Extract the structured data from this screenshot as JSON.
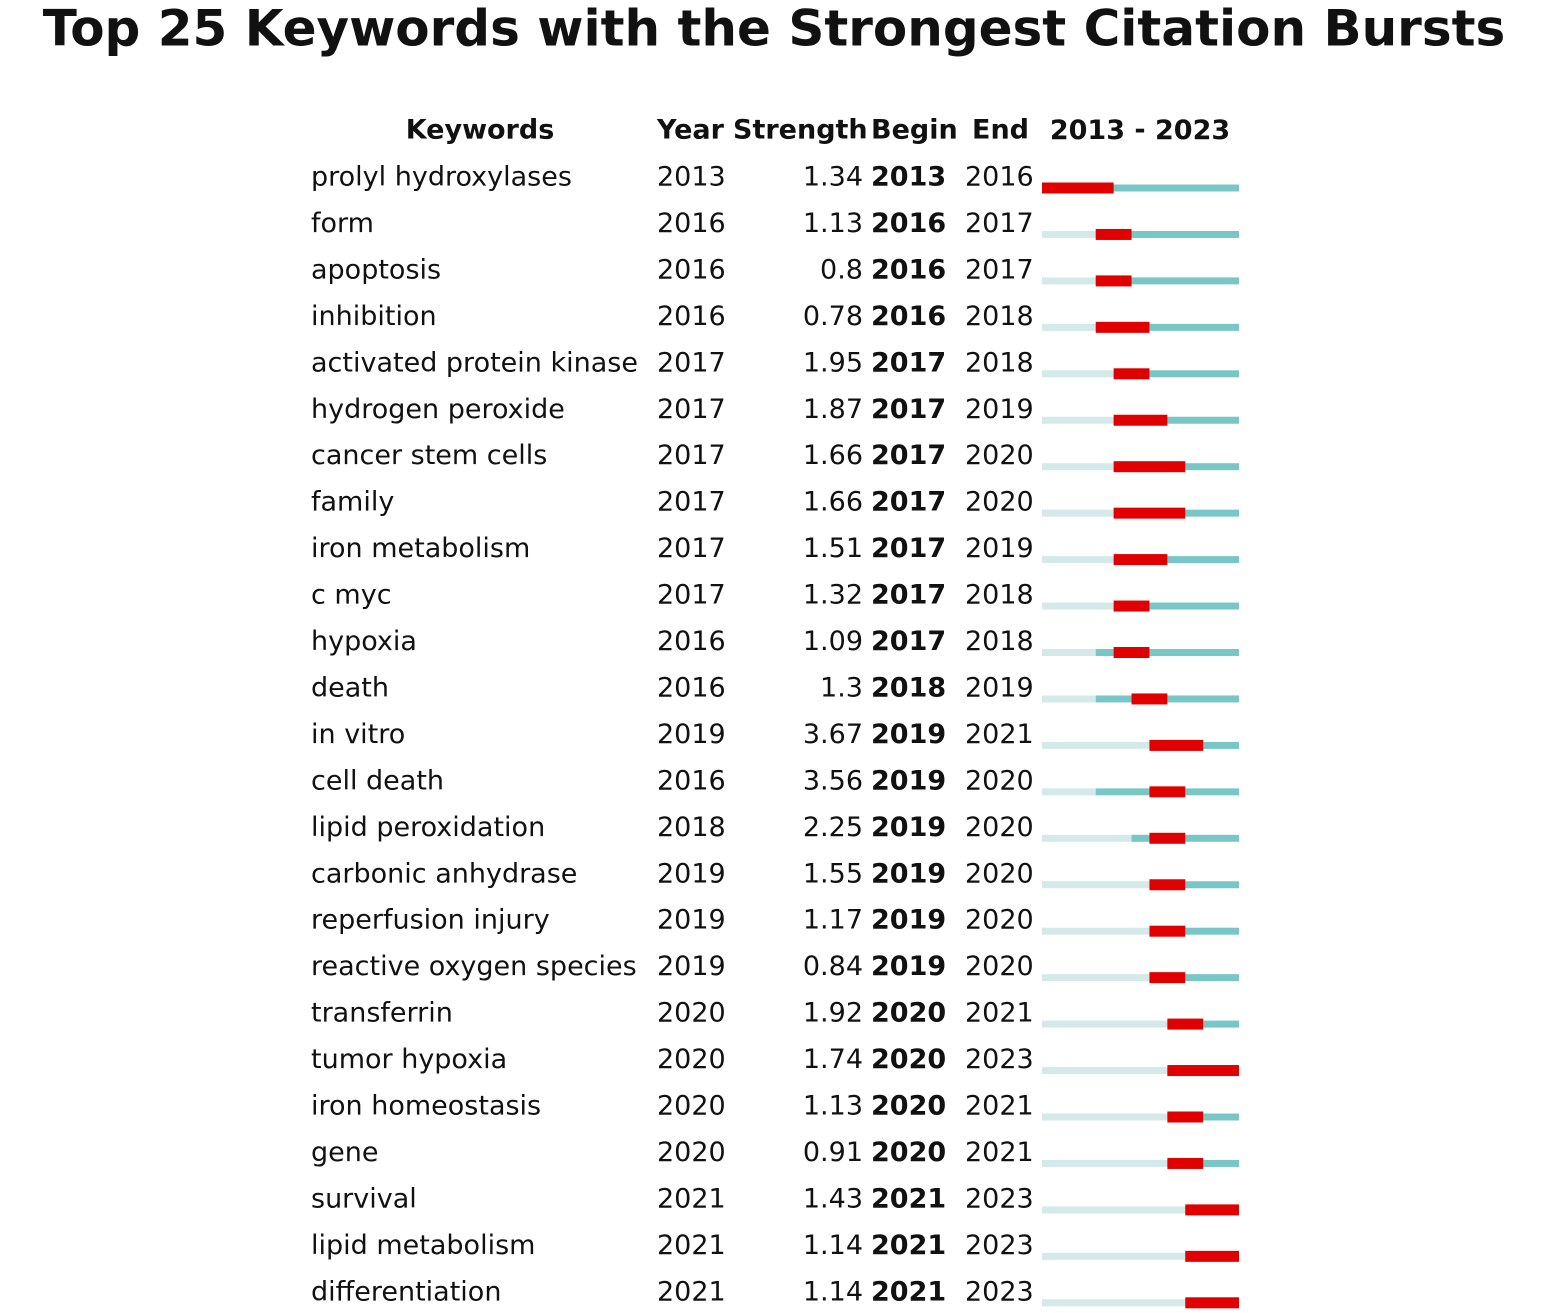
{
  "title": "Top 25 Keywords with the Strongest Citation Bursts",
  "columns": {
    "keyword": "Keywords",
    "year": "Year",
    "strength": "Strength",
    "begin": "Begin",
    "end": "End"
  },
  "timeline": {
    "start": 2013,
    "end": 2023
  },
  "rows": [
    {
      "keyword": "prolyl hydroxylases",
      "year": 2013,
      "strength": 1.34,
      "begin": 2013,
      "end": 2016
    },
    {
      "keyword": "form",
      "year": 2016,
      "strength": 1.13,
      "begin": 2016,
      "end": 2017
    },
    {
      "keyword": "apoptosis",
      "year": 2016,
      "strength": 0.8,
      "begin": 2016,
      "end": 2017
    },
    {
      "keyword": "inhibition",
      "year": 2016,
      "strength": 0.78,
      "begin": 2016,
      "end": 2018
    },
    {
      "keyword": "activated protein kinase",
      "year": 2017,
      "strength": 1.95,
      "begin": 2017,
      "end": 2018
    },
    {
      "keyword": "hydrogen peroxide",
      "year": 2017,
      "strength": 1.87,
      "begin": 2017,
      "end": 2019
    },
    {
      "keyword": "cancer stem cells",
      "year": 2017,
      "strength": 1.66,
      "begin": 2017,
      "end": 2020
    },
    {
      "keyword": "family",
      "year": 2017,
      "strength": 1.66,
      "begin": 2017,
      "end": 2020
    },
    {
      "keyword": "iron metabolism",
      "year": 2017,
      "strength": 1.51,
      "begin": 2017,
      "end": 2019
    },
    {
      "keyword": "c myc",
      "year": 2017,
      "strength": 1.32,
      "begin": 2017,
      "end": 2018
    },
    {
      "keyword": "hypoxia",
      "year": 2016,
      "strength": 1.09,
      "begin": 2017,
      "end": 2018
    },
    {
      "keyword": "death",
      "year": 2016,
      "strength": 1.3,
      "begin": 2018,
      "end": 2019
    },
    {
      "keyword": "in vitro",
      "year": 2019,
      "strength": 3.67,
      "begin": 2019,
      "end": 2021
    },
    {
      "keyword": "cell death",
      "year": 2016,
      "strength": 3.56,
      "begin": 2019,
      "end": 2020
    },
    {
      "keyword": "lipid peroxidation",
      "year": 2018,
      "strength": 2.25,
      "begin": 2019,
      "end": 2020
    },
    {
      "keyword": "carbonic anhydrase",
      "year": 2019,
      "strength": 1.55,
      "begin": 2019,
      "end": 2020
    },
    {
      "keyword": "reperfusion injury",
      "year": 2019,
      "strength": 1.17,
      "begin": 2019,
      "end": 2020
    },
    {
      "keyword": "reactive oxygen species",
      "year": 2019,
      "strength": 0.84,
      "begin": 2019,
      "end": 2020
    },
    {
      "keyword": "transferrin",
      "year": 2020,
      "strength": 1.92,
      "begin": 2020,
      "end": 2021
    },
    {
      "keyword": "tumor hypoxia",
      "year": 2020,
      "strength": 1.74,
      "begin": 2020,
      "end": 2023
    },
    {
      "keyword": "iron homeostasis",
      "year": 2020,
      "strength": 1.13,
      "begin": 2020,
      "end": 2021
    },
    {
      "keyword": "gene",
      "year": 2020,
      "strength": 0.91,
      "begin": 2020,
      "end": 2021
    },
    {
      "keyword": "survival",
      "year": 2021,
      "strength": 1.43,
      "begin": 2021,
      "end": 2023
    },
    {
      "keyword": "lipid metabolism",
      "year": 2021,
      "strength": 1.14,
      "begin": 2021,
      "end": 2023
    },
    {
      "keyword": "differentiation",
      "year": 2021,
      "strength": 1.14,
      "begin": 2021,
      "end": 2023
    }
  ]
}
